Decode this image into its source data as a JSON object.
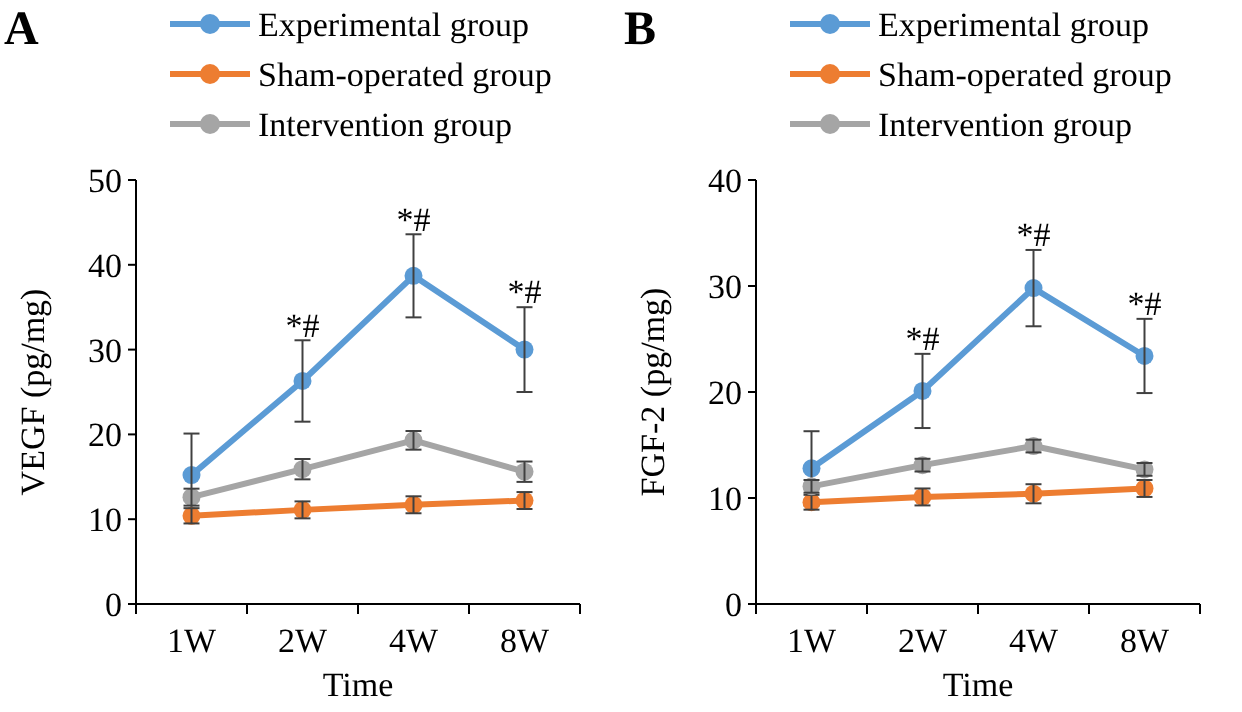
{
  "chart_data": [
    {
      "type": "line",
      "title": "A",
      "xlabel": "Time",
      "ylabel": "VEGF (pg/mg)",
      "categories": [
        "1W",
        "2W",
        "4W",
        "8W"
      ],
      "ylim": [
        0,
        50
      ],
      "yticks": [
        0,
        10,
        20,
        30,
        40,
        50
      ],
      "legend": "top",
      "marker": "circle",
      "line_style": "solid",
      "grid": false,
      "series": [
        {
          "name": "Experimental group",
          "color": "#5b9bd5",
          "values": [
            15.2,
            26.3,
            38.7,
            30.0
          ],
          "errors": [
            4.9,
            4.8,
            4.9,
            5.0
          ]
        },
        {
          "name": "Sham-operated group",
          "color": "#ed7d31",
          "values": [
            10.4,
            11.1,
            11.7,
            12.2
          ],
          "errors": [
            0.9,
            1.0,
            1.0,
            1.0
          ]
        },
        {
          "name": "Intervention group",
          "color": "#a5a5a5",
          "values": [
            12.6,
            15.9,
            19.3,
            15.6
          ],
          "errors": [
            1.0,
            1.2,
            1.1,
            1.2
          ]
        }
      ],
      "annotations": [
        {
          "text": "*#",
          "x": "2W",
          "y": 31.5
        },
        {
          "text": "*#",
          "x": "4W",
          "y": 44
        },
        {
          "text": "*#",
          "x": "8W",
          "y": 35.5
        }
      ]
    },
    {
      "type": "line",
      "title": "B",
      "xlabel": "Time",
      "ylabel": "FGF-2 (pg/mg)",
      "categories": [
        "1W",
        "2W",
        "4W",
        "8W"
      ],
      "ylim": [
        0,
        40
      ],
      "yticks": [
        0,
        10,
        20,
        30,
        40
      ],
      "legend": "top",
      "marker": "circle",
      "line_style": "solid",
      "grid": false,
      "series": [
        {
          "name": "Experimental group",
          "color": "#5b9bd5",
          "values": [
            12.8,
            20.1,
            29.8,
            23.4
          ],
          "errors": [
            3.5,
            3.5,
            3.6,
            3.5
          ]
        },
        {
          "name": "Sham-operated group",
          "color": "#ed7d31",
          "values": [
            9.6,
            10.1,
            10.4,
            10.9
          ],
          "errors": [
            0.7,
            0.8,
            0.9,
            0.8
          ]
        },
        {
          "name": "Intervention group",
          "color": "#a5a5a5",
          "values": [
            11.1,
            13.1,
            14.9,
            12.7
          ],
          "errors": [
            0.6,
            0.6,
            0.6,
            0.6
          ]
        }
      ],
      "annotations": [
        {
          "text": "*#",
          "x": "2W",
          "y": 24
        },
        {
          "text": "*#",
          "x": "4W",
          "y": 33.8
        },
        {
          "text": "*#",
          "x": "8W",
          "y": 27.3
        }
      ]
    }
  ]
}
